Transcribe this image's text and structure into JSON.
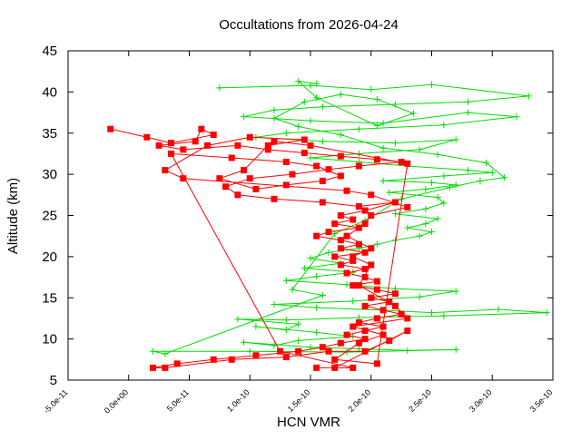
{
  "chart_data": {
    "type": "scatter",
    "title": "Occultations from 2026-04-24",
    "xlabel": "HCN VMR",
    "ylabel": "Altitude (km)",
    "xlim": [
      -5e-11,
      3.5e-10
    ],
    "ylim": [
      5,
      45
    ],
    "x_tick_labels": [
      "-5.0e-11",
      "0.0e+00",
      "5.0e-11",
      "1.0e-10",
      "1.5e-10",
      "2.0e-10",
      "2.5e-10",
      "3.0e-10",
      "3.5e-10"
    ],
    "y_tick_labels": [
      "5",
      "10",
      "15",
      "20",
      "25",
      "30",
      "35",
      "40",
      "45"
    ],
    "grid": false,
    "legend": "none",
    "series": [
      {
        "marker": "plus",
        "color": "#00dd00",
        "points": [
          [
            7.5e-11,
            40.5
          ],
          [
            1.5e-10,
            40.8
          ],
          [
            2e-10,
            40.3
          ],
          [
            2.5e-10,
            40.9
          ],
          [
            3.3e-10,
            39.5
          ],
          [
            2.8e-10,
            38.8
          ],
          [
            2.2e-10,
            38.5
          ],
          [
            1.6e-10,
            38.2
          ],
          [
            1.2e-10,
            37.8
          ],
          [
            9.5e-11,
            37.0
          ],
          [
            1.5e-10,
            36.5
          ],
          [
            2.1e-10,
            36.2
          ],
          [
            2.8e-10,
            37.5
          ],
          [
            3.2e-10,
            37.0
          ],
          [
            2.6e-10,
            36.0
          ],
          [
            1.9e-10,
            35.5
          ],
          [
            1.3e-10,
            35.0
          ],
          [
            1.05e-10,
            34.5
          ],
          [
            1.6e-10,
            34.0
          ],
          [
            2.2e-10,
            33.8
          ],
          [
            2.7e-10,
            34.2
          ],
          [
            2.4e-10,
            33.0
          ],
          [
            1.9e-10,
            32.5
          ],
          [
            1.5e-10,
            32.0
          ],
          [
            1.9e-10,
            31.5
          ],
          [
            2.3e-10,
            31.0
          ],
          [
            2.8e-10,
            30.5
          ],
          [
            3e-10,
            30.2
          ],
          [
            2.6e-10,
            29.8
          ],
          [
            2.1e-10,
            29.2
          ],
          [
            2.5e-10,
            29.0
          ],
          [
            2.7e-10,
            28.7
          ],
          [
            2.45e-10,
            28.2
          ],
          [
            2.15e-10,
            27.8
          ],
          [
            2.55e-10,
            27.2
          ],
          [
            2.6e-10,
            26.5
          ],
          [
            2.45e-10,
            25.8
          ],
          [
            2.2e-10,
            25.2
          ],
          [
            2.55e-10,
            24.6
          ],
          [
            2.45e-10,
            24.0
          ],
          [
            2.3e-10,
            23.5
          ],
          [
            2.5e-10,
            23.0
          ],
          [
            2.4e-10,
            22.5
          ],
          [
            2.2e-10,
            22.0
          ],
          [
            2.05e-10,
            21.5
          ],
          [
            1.9e-10,
            21.0
          ],
          [
            1.65e-10,
            20.5
          ],
          [
            1.5e-10,
            19.8
          ],
          [
            1.75e-10,
            19.2
          ],
          [
            1.45e-10,
            18.6
          ],
          [
            1.85e-10,
            18.1
          ],
          [
            1.55e-10,
            17.6
          ],
          [
            1.3e-10,
            17.1
          ],
          [
            1.8e-10,
            16.6
          ],
          [
            2.2e-10,
            16.1
          ],
          [
            2.7e-10,
            15.8
          ],
          [
            2.4e-10,
            15.1
          ],
          [
            1.85e-10,
            14.6
          ],
          [
            1.2e-10,
            14.2
          ],
          [
            1.55e-10,
            13.8
          ],
          [
            2.1e-10,
            13.5
          ],
          [
            2.5e-10,
            13.2
          ],
          [
            3.05e-10,
            13.6
          ],
          [
            3.45e-10,
            13.2
          ],
          [
            2.6e-10,
            12.8
          ],
          [
            1.9e-10,
            12.6
          ],
          [
            1.3e-10,
            12.3
          ],
          [
            9e-11,
            12.4
          ],
          [
            1.4e-10,
            11.8
          ],
          [
            1.3e-10,
            11.1
          ],
          [
            1.05e-10,
            11.5
          ],
          [
            1.55e-10,
            10.8
          ],
          [
            1.85e-10,
            10.3
          ],
          [
            1.4e-10,
            9.8
          ],
          [
            1.2e-10,
            9.2
          ],
          [
            9.5e-11,
            9.6
          ],
          [
            1.5e-10,
            9.0
          ],
          [
            1.9e-10,
            8.8
          ],
          [
            2.3e-10,
            8.6
          ],
          [
            2.7e-10,
            8.7
          ],
          [
            1.8e-10,
            8.4
          ],
          [
            1e-10,
            8.5
          ],
          [
            2e-11,
            8.5
          ],
          [
            3e-11,
            8.2
          ],
          [
            1.6e-10,
            15.3
          ],
          [
            1.35e-10,
            16.0
          ],
          [
            1.7e-10,
            22.8
          ],
          [
            1.95e-10,
            24.4
          ],
          [
            2.25e-10,
            27.0
          ],
          [
            2.65e-10,
            28.4
          ],
          [
            2.9e-10,
            29.2
          ],
          [
            3.1e-10,
            29.6
          ],
          [
            2.95e-10,
            31.4
          ],
          [
            2.55e-10,
            32.4
          ],
          [
            2.1e-10,
            33.2
          ],
          [
            1.75e-10,
            34.8
          ],
          [
            1.4e-10,
            35.8
          ],
          [
            1.2e-10,
            36.8
          ],
          [
            1.45e-10,
            38.8
          ],
          [
            1.75e-10,
            39.7
          ],
          [
            2.05e-10,
            39.1
          ],
          [
            2.35e-10,
            37.4
          ],
          [
            2.05e-10,
            35.9
          ],
          [
            1.55e-10,
            39.3
          ],
          [
            1.4e-10,
            41.3
          ],
          [
            1.55e-10,
            41.0
          ]
        ]
      },
      {
        "marker": "square",
        "color": "#ff0000",
        "points": [
          [
            -1.5e-11,
            35.5
          ],
          [
            1.5e-11,
            34.5
          ],
          [
            3.5e-11,
            33.8
          ],
          [
            7e-11,
            34.8
          ],
          [
            6e-11,
            35.5
          ],
          [
            5.5e-11,
            34.0
          ],
          [
            2.5e-11,
            33.5
          ],
          [
            4.5e-11,
            33.0
          ],
          [
            9e-11,
            33.5
          ],
          [
            1.15e-10,
            33.0
          ],
          [
            1.45e-10,
            32.6
          ],
          [
            1.75e-10,
            32.2
          ],
          [
            2.05e-10,
            31.8
          ],
          [
            2.25e-10,
            31.5
          ],
          [
            1.9e-10,
            31.0
          ],
          [
            1.65e-10,
            30.6
          ],
          [
            1.35e-10,
            30.0
          ],
          [
            1e-10,
            29.5
          ],
          [
            8e-11,
            28.5
          ],
          [
            9e-11,
            27.5
          ],
          [
            1.2e-10,
            27.0
          ],
          [
            1.6e-10,
            26.6
          ],
          [
            1.9e-10,
            26.1
          ],
          [
            2.2e-10,
            26.6
          ],
          [
            1.95e-10,
            25.6
          ],
          [
            1.75e-10,
            25.0
          ],
          [
            1.85e-10,
            24.5
          ],
          [
            1.7e-10,
            24.0
          ],
          [
            1.9e-10,
            23.5
          ],
          [
            1.65e-10,
            23.0
          ],
          [
            1.55e-10,
            22.5
          ],
          [
            1.75e-10,
            22.0
          ],
          [
            1.9e-10,
            21.5
          ],
          [
            1.75e-10,
            21.0
          ],
          [
            1.95e-10,
            20.5
          ],
          [
            1.7e-10,
            20.0
          ],
          [
            1.85e-10,
            19.5
          ],
          [
            1.75e-10,
            19.0
          ],
          [
            1.95e-10,
            18.5
          ],
          [
            1.8e-10,
            18.0
          ],
          [
            1.95e-10,
            17.5
          ],
          [
            2.05e-10,
            17.0
          ],
          [
            1.85e-10,
            16.5
          ],
          [
            2.05e-10,
            16.0
          ],
          [
            2.2e-10,
            15.5
          ],
          [
            2e-10,
            15.0
          ],
          [
            2.15e-10,
            14.5
          ],
          [
            1.95e-10,
            14.0
          ],
          [
            2.1e-10,
            13.5
          ],
          [
            2.25e-10,
            13.0
          ],
          [
            2.05e-10,
            12.5
          ],
          [
            1.9e-10,
            12.0
          ],
          [
            2.1e-10,
            11.5
          ],
          [
            1.95e-10,
            11.0
          ],
          [
            1.8e-10,
            10.5
          ],
          [
            1.95e-10,
            10.0
          ],
          [
            1.75e-10,
            9.5
          ],
          [
            1.6e-10,
            9.0
          ],
          [
            1.4e-10,
            8.5
          ],
          [
            1.05e-10,
            8.0
          ],
          [
            7e-11,
            7.5
          ],
          [
            4e-11,
            7.0
          ],
          [
            2e-11,
            6.5
          ],
          [
            3e-11,
            6.5
          ],
          [
            8.5e-11,
            7.5
          ],
          [
            1.3e-10,
            7.8
          ],
          [
            1.65e-10,
            8.5
          ],
          [
            1.95e-10,
            8.5
          ],
          [
            2.15e-10,
            9.8
          ],
          [
            2.3e-10,
            11.0
          ],
          [
            1.7e-10,
            6.5
          ],
          [
            1.55e-10,
            6.5
          ],
          [
            1.85e-10,
            6.5
          ],
          [
            1.25e-10,
            8.5
          ],
          [
            3.5e-11,
            32.5
          ],
          [
            8.5e-11,
            32.0
          ],
          [
            1.3e-10,
            31.5
          ],
          [
            1.55e-10,
            31.0
          ],
          [
            1.75e-10,
            29.8
          ],
          [
            1.6e-10,
            29.2
          ],
          [
            1.3e-10,
            28.7
          ],
          [
            1.05e-10,
            28.2
          ],
          [
            7.5e-11,
            29.5
          ],
          [
            9.5e-11,
            30.5
          ],
          [
            1.15e-10,
            33.5
          ],
          [
            1.45e-10,
            34.2
          ],
          [
            1e-10,
            34.5
          ],
          [
            6.5e-11,
            33.5
          ],
          [
            3e-11,
            30.5
          ],
          [
            4.5e-11,
            29.5
          ],
          [
            1.8e-10,
            28.0
          ],
          [
            2e-10,
            27.5
          ],
          [
            2.3e-10,
            26.0
          ],
          [
            2e-10,
            25.0
          ],
          [
            1.95e-10,
            24.0
          ],
          [
            1.8e-10,
            22.5
          ],
          [
            2e-10,
            21.0
          ],
          [
            1.85e-10,
            20.0
          ],
          [
            2e-10,
            19.0
          ],
          [
            1.9e-10,
            16.5
          ],
          [
            2.2e-10,
            14.0
          ],
          [
            2.3e-10,
            12.5
          ],
          [
            1.85e-10,
            11.5
          ],
          [
            2.1e-10,
            10.5
          ],
          [
            1.9e-10,
            9.5
          ],
          [
            1.7e-10,
            7.5
          ],
          [
            2.05e-10,
            7.0
          ],
          [
            2.3e-10,
            31.3
          ],
          [
            1.5e-10,
            33.5
          ],
          [
            1.2e-10,
            34.0
          ]
        ]
      }
    ]
  }
}
